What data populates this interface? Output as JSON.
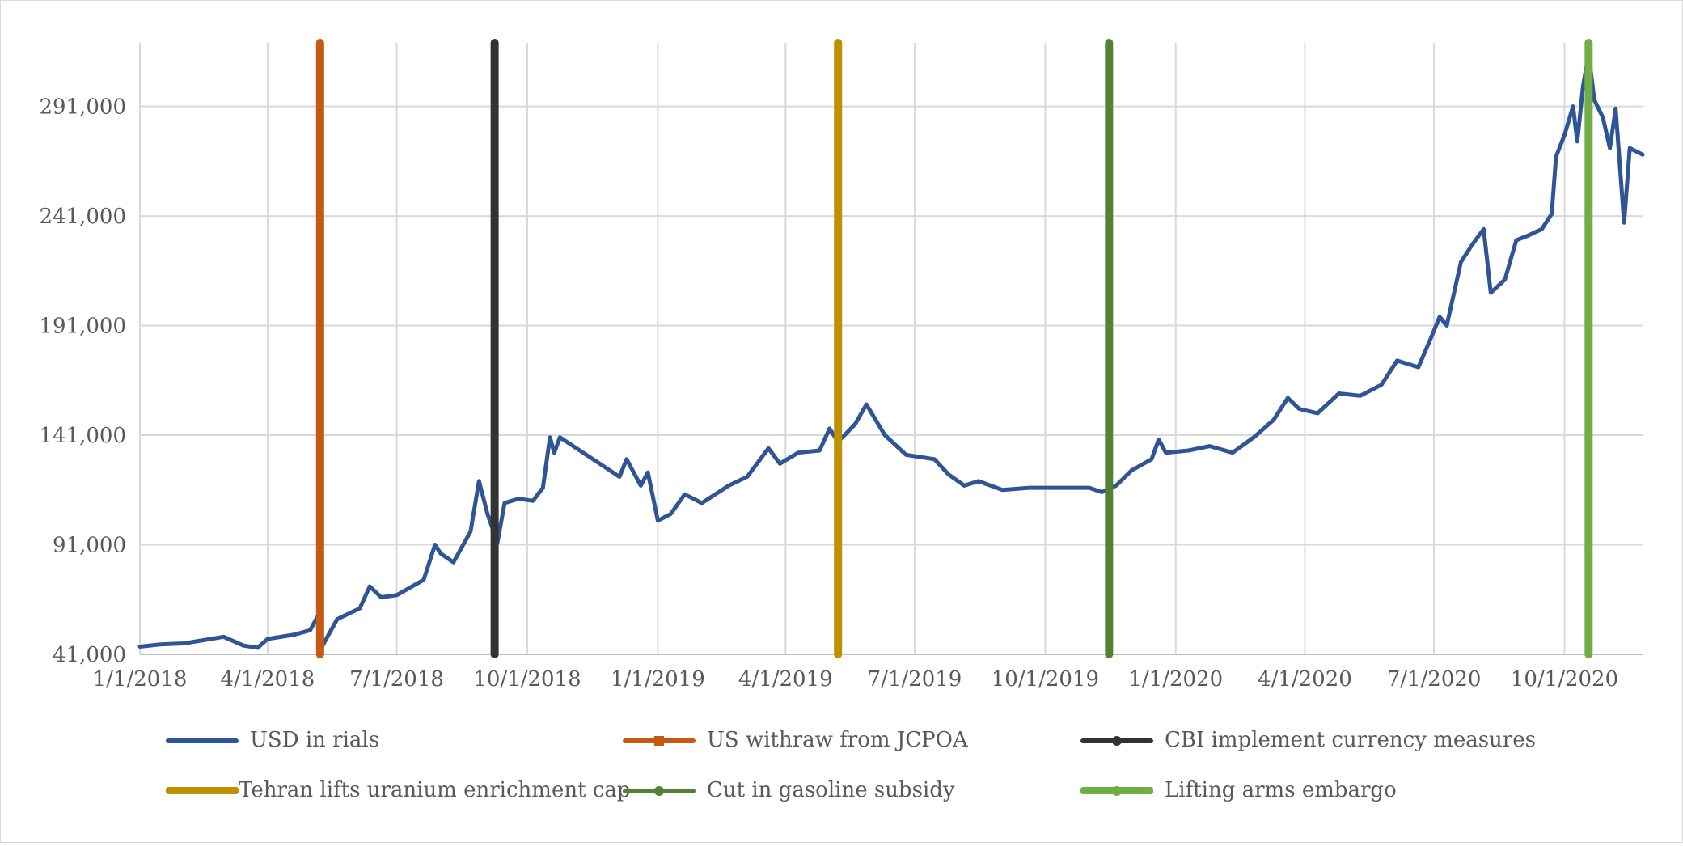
{
  "chart_data": {
    "type": "line",
    "title": "",
    "xlabel": "",
    "ylabel": "",
    "ylim": [
      41000,
      320000
    ],
    "y_ticks": [
      41000,
      91000,
      141000,
      191000,
      241000,
      291000
    ],
    "y_tick_labels": [
      "41,000",
      "91,000",
      "141,000",
      "191,000",
      "241,000",
      "291,000"
    ],
    "x_ticks": [
      "2018-01-01",
      "2018-04-01",
      "2018-07-01",
      "2018-10-01",
      "2019-01-01",
      "2019-04-01",
      "2019-07-01",
      "2019-10-01",
      "2020-01-01",
      "2020-04-01",
      "2020-07-01",
      "2020-10-01"
    ],
    "x_tick_labels": [
      "1/1/2018",
      "4/1/2018",
      "7/1/2018",
      "10/1/2018",
      "1/1/2019",
      "4/1/2019",
      "7/1/2019",
      "10/1/2019",
      "1/1/2020",
      "4/1/2020",
      "7/1/2020",
      "10/1/2020"
    ],
    "xlim": [
      "2018-01-01",
      "2020-11-25"
    ],
    "grid": true,
    "legend_position": "bottom",
    "series": [
      {
        "name": "USD in rials",
        "color": "#2F5597",
        "points": [
          [
            "2018-01-01",
            44500
          ],
          [
            "2018-01-15",
            45500
          ],
          [
            "2018-02-01",
            46000
          ],
          [
            "2018-02-20",
            48000
          ],
          [
            "2018-03-01",
            49000
          ],
          [
            "2018-03-15",
            45000
          ],
          [
            "2018-03-25",
            44000
          ],
          [
            "2018-04-01",
            48000
          ],
          [
            "2018-04-20",
            50000
          ],
          [
            "2018-05-01",
            52000
          ],
          [
            "2018-05-06",
            58000
          ],
          [
            "2018-05-08",
            43000
          ],
          [
            "2018-05-20",
            57000
          ],
          [
            "2018-06-05",
            62000
          ],
          [
            "2018-06-12",
            72000
          ],
          [
            "2018-06-20",
            67000
          ],
          [
            "2018-07-01",
            68000
          ],
          [
            "2018-07-20",
            75000
          ],
          [
            "2018-07-28",
            91000
          ],
          [
            "2018-08-01",
            87000
          ],
          [
            "2018-08-10",
            83000
          ],
          [
            "2018-08-22",
            97000
          ],
          [
            "2018-08-28",
            120000
          ],
          [
            "2018-09-03",
            105000
          ],
          [
            "2018-09-10",
            92000
          ],
          [
            "2018-09-15",
            110000
          ],
          [
            "2018-09-25",
            112000
          ],
          [
            "2018-10-05",
            111000
          ],
          [
            "2018-10-12",
            117000
          ],
          [
            "2018-10-17",
            140000
          ],
          [
            "2018-10-20",
            133000
          ],
          [
            "2018-10-24",
            140000
          ],
          [
            "2018-12-05",
            122000
          ],
          [
            "2018-12-10",
            130000
          ],
          [
            "2018-12-20",
            118000
          ],
          [
            "2018-12-25",
            124000
          ],
          [
            "2019-01-01",
            102000
          ],
          [
            "2019-01-10",
            105000
          ],
          [
            "2019-01-20",
            114000
          ],
          [
            "2019-02-01",
            110000
          ],
          [
            "2019-02-20",
            118000
          ],
          [
            "2019-03-05",
            122000
          ],
          [
            "2019-03-20",
            135000
          ],
          [
            "2019-03-28",
            128000
          ],
          [
            "2019-04-10",
            133000
          ],
          [
            "2019-04-25",
            134000
          ],
          [
            "2019-05-02",
            144000
          ],
          [
            "2019-05-08",
            138000
          ],
          [
            "2019-05-20",
            146000
          ],
          [
            "2019-05-28",
            155000
          ],
          [
            "2019-06-10",
            141000
          ],
          [
            "2019-06-25",
            132000
          ],
          [
            "2019-07-15",
            130000
          ],
          [
            "2019-07-25",
            123000
          ],
          [
            "2019-08-05",
            118000
          ],
          [
            "2019-08-15",
            120000
          ],
          [
            "2019-09-01",
            116000
          ],
          [
            "2019-09-20",
            117000
          ],
          [
            "2019-10-15",
            117000
          ],
          [
            "2019-11-01",
            117000
          ],
          [
            "2019-11-10",
            115000
          ],
          [
            "2019-11-20",
            118000
          ],
          [
            "2019-12-01",
            125000
          ],
          [
            "2019-12-15",
            130000
          ],
          [
            "2019-12-20",
            139000
          ],
          [
            "2019-12-25",
            133000
          ],
          [
            "2020-01-10",
            134000
          ],
          [
            "2020-01-25",
            136000
          ],
          [
            "2020-02-10",
            133000
          ],
          [
            "2020-02-25",
            140000
          ],
          [
            "2020-03-10",
            148000
          ],
          [
            "2020-03-20",
            158000
          ],
          [
            "2020-03-28",
            153000
          ],
          [
            "2020-04-10",
            151000
          ],
          [
            "2020-04-25",
            160000
          ],
          [
            "2020-05-10",
            159000
          ],
          [
            "2020-05-25",
            164000
          ],
          [
            "2020-06-05",
            175000
          ],
          [
            "2020-06-20",
            172000
          ],
          [
            "2020-06-28",
            184000
          ],
          [
            "2020-07-05",
            195000
          ],
          [
            "2020-07-10",
            191000
          ],
          [
            "2020-07-20",
            220000
          ],
          [
            "2020-07-28",
            228000
          ],
          [
            "2020-08-05",
            235000
          ],
          [
            "2020-08-10",
            206000
          ],
          [
            "2020-08-20",
            212000
          ],
          [
            "2020-08-28",
            230000
          ],
          [
            "2020-09-05",
            232000
          ],
          [
            "2020-09-15",
            235000
          ],
          [
            "2020-09-22",
            242000
          ],
          [
            "2020-09-25",
            268000
          ],
          [
            "2020-10-01",
            278000
          ],
          [
            "2020-10-07",
            291000
          ],
          [
            "2020-10-10",
            275000
          ],
          [
            "2020-10-14",
            300000
          ],
          [
            "2020-10-18",
            315000
          ],
          [
            "2020-10-22",
            294000
          ],
          [
            "2020-10-28",
            286000
          ],
          [
            "2020-11-02",
            272000
          ],
          [
            "2020-11-06",
            290000
          ],
          [
            "2020-11-12",
            238000
          ],
          [
            "2020-11-16",
            272000
          ],
          [
            "2020-11-25",
            269000
          ]
        ]
      }
    ],
    "events": [
      {
        "name": "US withraw from JCPOA",
        "date": "2018-05-08",
        "color": "#C55A11",
        "marker": "square"
      },
      {
        "name": "CBI implement currency measures",
        "date": "2018-09-08",
        "color": "#333333",
        "marker": "circle"
      },
      {
        "name": "Tehran lifts uranium enrichment cap",
        "date": "2019-05-08",
        "color": "#BF9000",
        "marker": "circle"
      },
      {
        "name": "Cut in gasoline subsidy",
        "date": "2019-11-15",
        "color": "#548235",
        "marker": "circle"
      },
      {
        "name": "Lifting arms embargo",
        "date": "2020-10-18",
        "color": "#70AD47",
        "marker": "circle"
      }
    ]
  },
  "legend": {
    "items": [
      {
        "label": "USD in rials",
        "color": "#2F5597",
        "marker": "none"
      },
      {
        "label": "US withraw from JCPOA",
        "color": "#C55A11",
        "marker": "square"
      },
      {
        "label": "CBI implement currency measures",
        "color": "#333333",
        "marker": "circle"
      },
      {
        "label": "Tehran lifts uranium enrichment cap",
        "color": "#BF9000",
        "marker": "none"
      },
      {
        "label": "Cut in gasoline subsidy",
        "color": "#548235",
        "marker": "circle"
      },
      {
        "label": "Lifting arms embargo",
        "color": "#70AD47",
        "marker": "circle"
      }
    ]
  }
}
